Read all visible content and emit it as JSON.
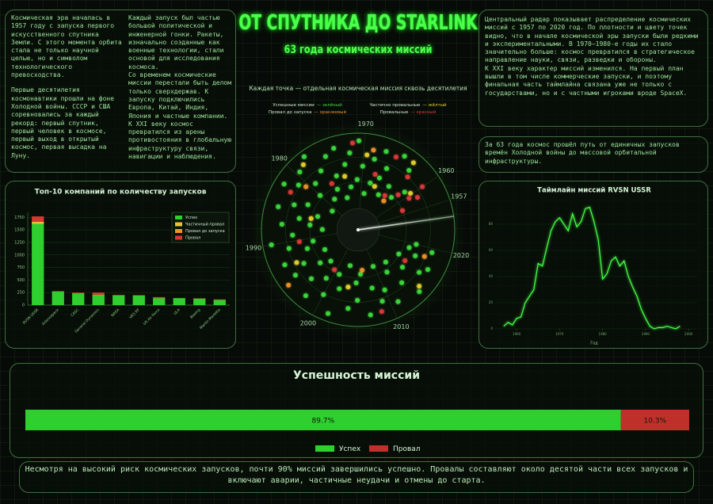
{
  "header": {
    "title": "ОТ СПУТНИКА ДО STARLINK",
    "subtitle": "63 года космических миссий"
  },
  "intro": {
    "column1": [
      "Космическая эра началась в 1957 году с запуска первого искусственного спутника Земли. С этого момента орбита стала не только научной целью, но и символом технологического превосходства.",
      "Первые десятилетия космонавтики прошли на фоне Холодной войны. СССР и США соревновались за каждый рекорд: первый спутник, первый человек в космосе, первый выход в открытый космос, первая высадка на Луну."
    ],
    "column2": [
      "Каждый запуск был частью большой политической и инженерной гонки. Ракеты, изначально созданные как военные технологии, стали основой для исследования космоса.",
      "Со временем космические миссии перестали быть делом только сверхдержав. К запуску подключились Европа, Китай, Индия, Япония и частные компании. К XXI веку космос превратился из арены противостояния в глобальную инфраструктуру связи, навигации и наблюдения."
    ]
  },
  "radar_text": [
    "Центральный радар показывает распределение космических миссий с 1957 по 2020 год. По плотности и цвету точек видно, что в начале космической эры запуски были редкими и экспериментальными. В 1970–1980-е годы их стало значительно больше: космос превратился в стратегическое направление науки, связи, разведки и обороны.",
    "К XXI веку характер миссий изменился. На первый план вышли в том числе коммерческие запуски, и поэтому финальная часть таймлайна связана уже не только с государствами, но и с частными игроками вроде SpaceX."
  ],
  "summary_text": "За 63 года космос прошёл путь от единичных запусков времён Холодной войны до массовой орбитальной инфраструктуры.",
  "footer_text": "Несмотря на высокий риск космических запусков, почти 90% миссий завершились успешно. Провалы составляют около десятой части всех запусков и включают аварии, частичные неудачи и отмены до старта.",
  "chart_data": [
    {
      "type": "bar",
      "stacked": true,
      "title": "Топ-10 компаний по количеству запусков",
      "categories": [
        "RVSN USSR",
        "Arianespace",
        "CASC",
        "General Dynamics",
        "NASA",
        "VKS RF",
        "US Air Force",
        "ULA",
        "Boeing",
        "Martin Marietta"
      ],
      "series": [
        {
          "name": "Успех",
          "color": "#2fcf2f",
          "values": [
            1620,
            270,
            235,
            200,
            190,
            190,
            135,
            139,
            130,
            100
          ]
        },
        {
          "name": "Частичный провал",
          "color": "#e8c33a",
          "values": [
            40,
            3,
            5,
            10,
            5,
            3,
            5,
            1,
            2,
            3
          ]
        },
        {
          "name": "Провал до запуска",
          "color": "#f0932b",
          "values": [
            0,
            0,
            0,
            0,
            0,
            0,
            0,
            0,
            0,
            0
          ]
        },
        {
          "name": "Провал",
          "color": "#d63a2e",
          "values": [
            110,
            7,
            10,
            40,
            8,
            7,
            20,
            0,
            4,
            11
          ]
        }
      ],
      "ylim": [
        0,
        1850
      ],
      "yticks": [
        0,
        250,
        500,
        750,
        1000,
        1250,
        1500,
        1750
      ],
      "legend": "upper-right"
    },
    {
      "type": "polar_scatter",
      "title": "Каждая точка — отдельная космическая миссия сквозь десятилетия",
      "xlim": [
        1953.5,
        2022.7
      ],
      "xticks": [
        1957,
        1960,
        1970,
        1980,
        1990,
        2000,
        2010,
        2020
      ],
      "rlim": [
        0,
        1
      ],
      "series": [
        {
          "name": "Успешные миссии",
          "color_word": "— зелёный",
          "color": "#3ddc3d",
          "x": [
            1961,
            1962,
            1963,
            1964,
            1964.6,
            1965,
            1966,
            1966.5,
            1967,
            1968,
            1968.3,
            1969,
            1970,
            1970.7,
            1971,
            1972,
            1972.6,
            1973,
            1974,
            1974.4,
            1975,
            1975.4,
            1976,
            1977,
            1977.8,
            1978,
            1979,
            1979.5,
            1980,
            1981,
            1981.2,
            1982,
            1983,
            1984,
            1984.6,
            1985,
            1986,
            1987,
            1987.3,
            1988,
            1989,
            1990,
            1990.8,
            1991,
            1992,
            1993,
            1994,
            1994.2,
            1995,
            1996,
            1997,
            1997.5,
            1998,
            1999,
            2000,
            2001,
            2001.6,
            2002,
            2003,
            2004,
            2005,
            2005.3,
            2006,
            2007,
            2008,
            2009,
            2009.7,
            2010,
            2011,
            2012,
            2013,
            2013.2,
            2014,
            2015,
            2016,
            2016.8,
            2017,
            2018,
            2019,
            2019.4,
            2020
          ],
          "values": [
            0.62,
            0.48,
            0.81,
            0.55,
            0.9,
            0.42,
            0.7,
            0.58,
            0.86,
            0.5,
            0.75,
            0.38,
            0.66,
            0.92,
            0.52,
            0.8,
            0.45,
            0.69,
            0.88,
            0.35,
            0.6,
            0.83,
            0.47,
            0.72,
            0.94,
            0.4,
            0.65,
            0.85,
            0.53,
            0.77,
            0.33,
            0.9,
            0.58,
            0.71,
            0.44,
            0.86,
            0.62,
            0.5,
            0.79,
            0.37,
            0.68,
            0.91,
            0.48,
            0.74,
            0.56,
            0.84,
            0.4,
            0.66,
            0.8,
            0.52,
            0.7,
            0.43,
            0.87,
            0.6,
            0.76,
            0.5,
            0.92,
            0.64,
            0.38,
            0.82,
            0.55,
            0.73,
            0.46,
            0.89,
            0.62,
            0.78,
            0.41,
            0.68,
            0.85,
            0.53,
            0.71,
            0.44,
            0.9,
            0.6,
            0.77,
            0.49,
            0.83,
            0.65,
            0.56,
            0.8,
            0.62
          ]
        },
        {
          "name": "Частично провальные",
          "color_word": "— жёлтый",
          "color": "#e6d22e",
          "x": [
            1960.2,
            1963.2,
            1966.8,
            1969.5,
            1973.5,
            1978.5,
            1985.5,
            1993.5,
            2003.5,
            2014.5
          ],
          "values": [
            0.66,
            0.9,
            0.48,
            0.78,
            0.57,
            0.88,
            0.5,
            0.72,
            0.6,
            0.86
          ]
        },
        {
          "name": "Провал до запуска",
          "color_word": "— оранжевый",
          "color": "#f0932b",
          "x": [
            1962.8,
            1968.7,
            1980.5,
            1995.5,
            2006.5,
            2018.5
          ],
          "values": [
            0.4,
            0.84,
            0.7,
            0.92,
            0.42,
            0.74
          ]
        },
        {
          "name": "Провальные",
          "color_word": "— красный",
          "color": "#e0393a",
          "x": [
            1958,
            1959,
            1959.6,
            1960,
            1961.4,
            1962.5,
            1963.5,
            1965.5,
            1967.5,
            1971.5,
            1976.5,
            1982.5,
            1990.3,
            1999.5,
            2008.5,
            2016.3
          ],
          "values": [
            0.5,
            0.7,
            0.62,
            0.8,
            0.55,
            0.75,
            0.45,
            0.85,
            0.6,
            0.9,
            0.55,
            0.8,
            0.62,
            0.48,
            0.88,
            0.58
          ]
        }
      ]
    },
    {
      "type": "line",
      "title": "Таймлайн миссий RVSN USSR",
      "xlabel": "Год",
      "color": "#44ff44",
      "x": [
        1957,
        1958,
        1959,
        1960,
        1961,
        1962,
        1963,
        1964,
        1965,
        1966,
        1967,
        1968,
        1969,
        1970,
        1971,
        1972,
        1973,
        1974,
        1975,
        1976,
        1977,
        1978,
        1979,
        1980,
        1981,
        1982,
        1983,
        1984,
        1985,
        1986,
        1987,
        1988,
        1989,
        1990,
        1991,
        1992,
        1993,
        1994,
        1995,
        1996,
        1997,
        1998
      ],
      "values": [
        2,
        5,
        3,
        8,
        9,
        20,
        25,
        30,
        50,
        48,
        62,
        75,
        82,
        85,
        80,
        75,
        88,
        78,
        82,
        92,
        93,
        82,
        68,
        38,
        42,
        52,
        55,
        48,
        52,
        40,
        32,
        25,
        15,
        8,
        2,
        0,
        1,
        1,
        2,
        1,
        0,
        2
      ],
      "xlim": [
        1955,
        2002
      ],
      "xticks": [
        1960,
        1970,
        1980,
        1990,
        2000
      ],
      "ylim": [
        0,
        100
      ],
      "yticks": [
        0,
        20,
        40,
        60,
        80
      ]
    },
    {
      "type": "stacked_barh",
      "title": "Успешность миссий",
      "xlim": [
        0,
        100
      ],
      "series": [
        {
          "name": "Успех",
          "color": "#2fcf2f",
          "values": [
            89.7
          ],
          "value_labels": [
            "89.7%"
          ]
        },
        {
          "name": "Провал",
          "color": "#c0302a",
          "values": [
            10.3
          ],
          "value_labels": [
            "10.3%"
          ]
        }
      ]
    }
  ]
}
